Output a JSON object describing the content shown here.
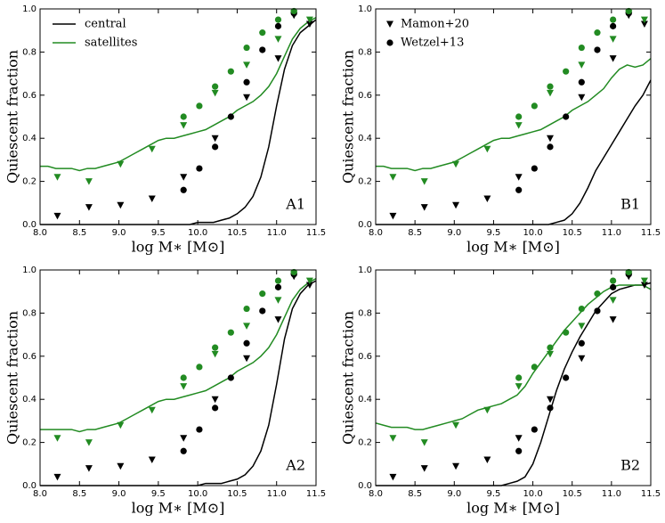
{
  "chart_data": [
    {
      "type": "line",
      "label": "A1",
      "xlabel": "log M∗ [M⊙]",
      "ylabel": "Quiescent fraction",
      "xlim": [
        8.0,
        11.5
      ],
      "ylim": [
        0.0,
        1.0
      ],
      "xticks": [
        {
          "value": 8.0,
          "label": "8.0"
        },
        {
          "value": 8.5,
          "label": "8.5"
        },
        {
          "value": 9.0,
          "label": "9.0"
        },
        {
          "value": 9.5,
          "label": "9.5"
        },
        {
          "value": 10.0,
          "label": "10.0"
        },
        {
          "value": 10.5,
          "label": "10.5"
        },
        {
          "value": 11.0,
          "label": "11.0"
        },
        {
          "value": 11.5,
          "label": "11.5"
        }
      ],
      "yticks": [
        {
          "value": 0.0,
          "label": "0.0"
        },
        0.2,
        0.4,
        0.6,
        0.8,
        {
          "value": 1.0,
          "label": "1.0"
        }
      ],
      "x": [
        8.0,
        8.1,
        8.2,
        8.3,
        8.4,
        8.5,
        8.6,
        8.7,
        8.8,
        8.9,
        9.0,
        9.1,
        9.2,
        9.3,
        9.4,
        9.5,
        9.6,
        9.7,
        9.8,
        9.9,
        10.0,
        10.1,
        10.2,
        10.3,
        10.4,
        10.5,
        10.6,
        10.7,
        10.8,
        10.9,
        11.0,
        11.1,
        11.2,
        11.3,
        11.4,
        11.5
      ],
      "series": [
        {
          "name": "central",
          "color": "#000000",
          "values": [
            0,
            0,
            0,
            0,
            0,
            0,
            0,
            0,
            0,
            0,
            0,
            0,
            0,
            0,
            0,
            0,
            0,
            0,
            0,
            0,
            0.01,
            0.01,
            0.01,
            0.02,
            0.03,
            0.05,
            0.08,
            0.13,
            0.22,
            0.36,
            0.55,
            0.72,
            0.83,
            0.89,
            0.92,
            0.95
          ]
        },
        {
          "name": "satellites",
          "color": "#228b22",
          "values": [
            0.27,
            0.27,
            0.26,
            0.26,
            0.26,
            0.25,
            0.26,
            0.26,
            0.27,
            0.28,
            0.29,
            0.31,
            0.33,
            0.35,
            0.37,
            0.39,
            0.4,
            0.4,
            0.41,
            0.42,
            0.43,
            0.44,
            0.46,
            0.48,
            0.5,
            0.53,
            0.55,
            0.57,
            0.6,
            0.64,
            0.7,
            0.78,
            0.86,
            0.91,
            0.94,
            0.96
          ]
        }
      ],
      "points": [
        {
          "marker": "triangle",
          "color": "#000000",
          "x": [
            8.22,
            8.62,
            9.02,
            9.42,
            9.82,
            10.22,
            10.62,
            11.02,
            11.22,
            11.42
          ],
          "y": [
            0.04,
            0.08,
            0.09,
            0.12,
            0.22,
            0.4,
            0.59,
            0.77,
            0.97,
            0.93
          ]
        },
        {
          "marker": "triangle",
          "color": "#228b22",
          "x": [
            8.22,
            8.62,
            9.02,
            9.42,
            9.82,
            10.22,
            10.62,
            11.02,
            11.22,
            11.42
          ],
          "y": [
            0.22,
            0.2,
            0.28,
            0.35,
            0.46,
            0.61,
            0.74,
            0.86,
            0.98,
            0.95
          ]
        },
        {
          "marker": "circle",
          "color": "#000000",
          "x": [
            9.82,
            10.02,
            10.22,
            10.42,
            10.62,
            10.82,
            11.02,
            11.22
          ],
          "y": [
            0.16,
            0.26,
            0.36,
            0.5,
            0.66,
            0.81,
            0.92,
            0.98
          ]
        },
        {
          "marker": "circle",
          "color": "#228b22",
          "x": [
            9.82,
            10.02,
            10.22,
            10.42,
            10.62,
            10.82,
            11.02,
            11.22
          ],
          "y": [
            0.5,
            0.55,
            0.64,
            0.71,
            0.82,
            0.89,
            0.95,
            0.99
          ]
        }
      ]
    },
    {
      "type": "line",
      "label": "B1",
      "xlabel": "log M∗ [M⊙]",
      "ylabel": "Quiescent fraction",
      "xlim": [
        8.0,
        11.5
      ],
      "ylim": [
        0.0,
        1.0
      ],
      "xticks": [
        {
          "value": 8.0,
          "label": "8.0"
        },
        {
          "value": 8.5,
          "label": "8.5"
        },
        {
          "value": 9.0,
          "label": "9.0"
        },
        {
          "value": 9.5,
          "label": "9.5"
        },
        {
          "value": 10.0,
          "label": "10.0"
        },
        {
          "value": 10.5,
          "label": "10.5"
        },
        {
          "value": 11.0,
          "label": "11.0"
        },
        {
          "value": 11.5,
          "label": "11.5"
        }
      ],
      "yticks": [
        {
          "value": 0.0,
          "label": "0.0"
        },
        0.2,
        0.4,
        0.6,
        0.8,
        {
          "value": 1.0,
          "label": "1.0"
        }
      ],
      "x": [
        8.0,
        8.1,
        8.2,
        8.3,
        8.4,
        8.5,
        8.6,
        8.7,
        8.8,
        8.9,
        9.0,
        9.1,
        9.2,
        9.3,
        9.4,
        9.5,
        9.6,
        9.7,
        9.8,
        9.9,
        10.0,
        10.1,
        10.2,
        10.3,
        10.4,
        10.5,
        10.6,
        10.7,
        10.8,
        10.9,
        11.0,
        11.1,
        11.2,
        11.3,
        11.4,
        11.5
      ],
      "series": [
        {
          "color": "#000000",
          "values": [
            0,
            0,
            0,
            0,
            0,
            0,
            0,
            0,
            0,
            0,
            0,
            0,
            0,
            0,
            0,
            0,
            0,
            0,
            0,
            0,
            0,
            0,
            0,
            0.01,
            0.02,
            0.05,
            0.1,
            0.17,
            0.25,
            0.31,
            0.37,
            0.43,
            0.49,
            0.55,
            0.6,
            0.67
          ]
        },
        {
          "color": "#228b22",
          "values": [
            0.27,
            0.27,
            0.26,
            0.26,
            0.26,
            0.25,
            0.26,
            0.26,
            0.27,
            0.28,
            0.29,
            0.31,
            0.33,
            0.35,
            0.37,
            0.39,
            0.4,
            0.4,
            0.41,
            0.42,
            0.43,
            0.44,
            0.46,
            0.48,
            0.5,
            0.53,
            0.55,
            0.57,
            0.6,
            0.63,
            0.68,
            0.72,
            0.74,
            0.73,
            0.74,
            0.77
          ]
        }
      ],
      "point_legend": [
        {
          "name": "Mamon+20",
          "marker": "triangle"
        },
        {
          "name": "Wetzel+13",
          "marker": "circle"
        }
      ],
      "points": [
        {
          "marker": "triangle",
          "color": "#000000",
          "x": [
            8.22,
            8.62,
            9.02,
            9.42,
            9.82,
            10.22,
            10.62,
            11.02,
            11.22,
            11.42
          ],
          "y": [
            0.04,
            0.08,
            0.09,
            0.12,
            0.22,
            0.4,
            0.59,
            0.77,
            0.97,
            0.93
          ]
        },
        {
          "marker": "triangle",
          "color": "#228b22",
          "x": [
            8.22,
            8.62,
            9.02,
            9.42,
            9.82,
            10.22,
            10.62,
            11.02,
            11.22,
            11.42
          ],
          "y": [
            0.22,
            0.2,
            0.28,
            0.35,
            0.46,
            0.61,
            0.74,
            0.86,
            0.98,
            0.95
          ]
        },
        {
          "marker": "circle",
          "color": "#000000",
          "x": [
            9.82,
            10.02,
            10.22,
            10.42,
            10.62,
            10.82,
            11.02,
            11.22
          ],
          "y": [
            0.16,
            0.26,
            0.36,
            0.5,
            0.66,
            0.81,
            0.92,
            0.98
          ]
        },
        {
          "marker": "circle",
          "color": "#228b22",
          "x": [
            9.82,
            10.02,
            10.22,
            10.42,
            10.62,
            10.82,
            11.02,
            11.22
          ],
          "y": [
            0.5,
            0.55,
            0.64,
            0.71,
            0.82,
            0.89,
            0.95,
            0.99
          ]
        }
      ]
    },
    {
      "type": "line",
      "label": "A2",
      "xlabel": "log M∗ [M⊙]",
      "ylabel": "Quiescent fraction",
      "xlim": [
        8.0,
        11.5
      ],
      "ylim": [
        0.0,
        1.0
      ],
      "xticks": [
        {
          "value": 8.0,
          "label": "8.0"
        },
        {
          "value": 8.5,
          "label": "8.5"
        },
        {
          "value": 9.0,
          "label": "9.0"
        },
        {
          "value": 9.5,
          "label": "9.5"
        },
        {
          "value": 10.0,
          "label": "10.0"
        },
        {
          "value": 10.5,
          "label": "10.5"
        },
        {
          "value": 11.0,
          "label": "11.0"
        },
        {
          "value": 11.5,
          "label": "11.5"
        }
      ],
      "yticks": [
        {
          "value": 0.0,
          "label": "0.0"
        },
        0.2,
        0.4,
        0.6,
        0.8,
        {
          "value": 1.0,
          "label": "1.0"
        }
      ],
      "x": [
        8.0,
        8.1,
        8.2,
        8.3,
        8.4,
        8.5,
        8.6,
        8.7,
        8.8,
        8.9,
        9.0,
        9.1,
        9.2,
        9.3,
        9.4,
        9.5,
        9.6,
        9.7,
        9.8,
        9.9,
        10.0,
        10.1,
        10.2,
        10.3,
        10.4,
        10.5,
        10.6,
        10.7,
        10.8,
        10.9,
        11.0,
        11.1,
        11.2,
        11.3,
        11.4,
        11.5
      ],
      "series": [
        {
          "color": "#000000",
          "values": [
            0,
            0,
            0,
            0,
            0,
            0,
            0,
            0,
            0,
            0,
            0,
            0,
            0,
            0,
            0,
            0,
            0,
            0,
            0,
            0,
            0,
            0.01,
            0.01,
            0.01,
            0.02,
            0.03,
            0.05,
            0.09,
            0.16,
            0.28,
            0.47,
            0.68,
            0.82,
            0.89,
            0.93,
            0.95
          ]
        },
        {
          "color": "#228b22",
          "values": [
            0.26,
            0.26,
            0.26,
            0.26,
            0.26,
            0.25,
            0.26,
            0.26,
            0.27,
            0.28,
            0.29,
            0.31,
            0.33,
            0.35,
            0.37,
            0.39,
            0.4,
            0.4,
            0.41,
            0.42,
            0.43,
            0.44,
            0.46,
            0.48,
            0.5,
            0.53,
            0.55,
            0.57,
            0.6,
            0.64,
            0.7,
            0.78,
            0.86,
            0.91,
            0.94,
            0.96
          ]
        }
      ],
      "points": [
        {
          "marker": "triangle",
          "color": "#000000",
          "x": [
            8.22,
            8.62,
            9.02,
            9.42,
            9.82,
            10.22,
            10.62,
            11.02,
            11.22,
            11.42
          ],
          "y": [
            0.04,
            0.08,
            0.09,
            0.12,
            0.22,
            0.4,
            0.59,
            0.77,
            0.97,
            0.93
          ]
        },
        {
          "marker": "triangle",
          "color": "#228b22",
          "x": [
            8.22,
            8.62,
            9.02,
            9.42,
            9.82,
            10.22,
            10.62,
            11.02,
            11.22,
            11.42
          ],
          "y": [
            0.22,
            0.2,
            0.28,
            0.35,
            0.46,
            0.61,
            0.74,
            0.86,
            0.98,
            0.95
          ]
        },
        {
          "marker": "circle",
          "color": "#000000",
          "x": [
            9.82,
            10.02,
            10.22,
            10.42,
            10.62,
            10.82,
            11.02,
            11.22
          ],
          "y": [
            0.16,
            0.26,
            0.36,
            0.5,
            0.66,
            0.81,
            0.92,
            0.98
          ]
        },
        {
          "marker": "circle",
          "color": "#228b22",
          "x": [
            9.82,
            10.02,
            10.22,
            10.42,
            10.62,
            10.82,
            11.02,
            11.22
          ],
          "y": [
            0.5,
            0.55,
            0.64,
            0.71,
            0.82,
            0.89,
            0.95,
            0.99
          ]
        }
      ]
    },
    {
      "type": "line",
      "label": "B2",
      "xlabel": "log M∗ [M⊙]",
      "ylabel": "Quiescent fraction",
      "xlim": [
        8.0,
        11.5
      ],
      "ylim": [
        0.0,
        1.0
      ],
      "xticks": [
        {
          "value": 8.0,
          "label": "8.0"
        },
        {
          "value": 8.5,
          "label": "8.5"
        },
        {
          "value": 9.0,
          "label": "9.0"
        },
        {
          "value": 9.5,
          "label": "9.5"
        },
        {
          "value": 10.0,
          "label": "10.0"
        },
        {
          "value": 10.5,
          "label": "10.5"
        },
        {
          "value": 11.0,
          "label": "11.0"
        },
        {
          "value": 11.5,
          "label": "11.5"
        }
      ],
      "yticks": [
        {
          "value": 0.0,
          "label": "0.0"
        },
        0.2,
        0.4,
        0.6,
        0.8,
        {
          "value": 1.0,
          "label": "1.0"
        }
      ],
      "x": [
        8.0,
        8.1,
        8.2,
        8.3,
        8.4,
        8.5,
        8.6,
        8.7,
        8.8,
        8.9,
        9.0,
        9.1,
        9.2,
        9.3,
        9.4,
        9.5,
        9.6,
        9.7,
        9.8,
        9.9,
        10.0,
        10.1,
        10.2,
        10.3,
        10.4,
        10.5,
        10.6,
        10.7,
        10.8,
        10.9,
        11.0,
        11.1,
        11.2,
        11.3,
        11.4,
        11.5
      ],
      "series": [
        {
          "color": "#000000",
          "values": [
            0,
            0,
            0,
            0,
            0,
            0,
            0,
            0,
            0,
            0,
            0,
            0,
            0,
            0,
            0,
            0,
            0,
            0.01,
            0.02,
            0.04,
            0.1,
            0.2,
            0.32,
            0.44,
            0.54,
            0.62,
            0.69,
            0.75,
            0.81,
            0.85,
            0.89,
            0.91,
            0.92,
            0.93,
            0.93,
            0.94
          ]
        },
        {
          "color": "#228b22",
          "values": [
            0.29,
            0.28,
            0.27,
            0.27,
            0.27,
            0.26,
            0.26,
            0.27,
            0.28,
            0.29,
            0.3,
            0.31,
            0.33,
            0.35,
            0.36,
            0.37,
            0.38,
            0.4,
            0.42,
            0.46,
            0.52,
            0.57,
            0.62,
            0.67,
            0.72,
            0.76,
            0.8,
            0.84,
            0.87,
            0.9,
            0.92,
            0.93,
            0.93,
            0.93,
            0.93,
            0.91
          ]
        }
      ],
      "points": [
        {
          "marker": "triangle",
          "color": "#000000",
          "x": [
            8.22,
            8.62,
            9.02,
            9.42,
            9.82,
            10.22,
            10.62,
            11.02,
            11.22,
            11.42
          ],
          "y": [
            0.04,
            0.08,
            0.09,
            0.12,
            0.22,
            0.4,
            0.59,
            0.77,
            0.97,
            0.93
          ]
        },
        {
          "marker": "triangle",
          "color": "#228b22",
          "x": [
            8.22,
            8.62,
            9.02,
            9.42,
            9.82,
            10.22,
            10.62,
            11.02,
            11.22,
            11.42
          ],
          "y": [
            0.22,
            0.2,
            0.28,
            0.35,
            0.46,
            0.61,
            0.74,
            0.86,
            0.98,
            0.95
          ]
        },
        {
          "marker": "circle",
          "color": "#000000",
          "x": [
            9.82,
            10.02,
            10.22,
            10.42,
            10.62,
            10.82,
            11.02,
            11.22
          ],
          "y": [
            0.16,
            0.26,
            0.36,
            0.5,
            0.66,
            0.81,
            0.92,
            0.98
          ]
        },
        {
          "marker": "circle",
          "color": "#228b22",
          "x": [
            9.82,
            10.02,
            10.22,
            10.42,
            10.62,
            10.82,
            11.02,
            11.22
          ],
          "y": [
            0.5,
            0.55,
            0.64,
            0.71,
            0.82,
            0.89,
            0.95,
            0.99
          ]
        }
      ]
    }
  ]
}
